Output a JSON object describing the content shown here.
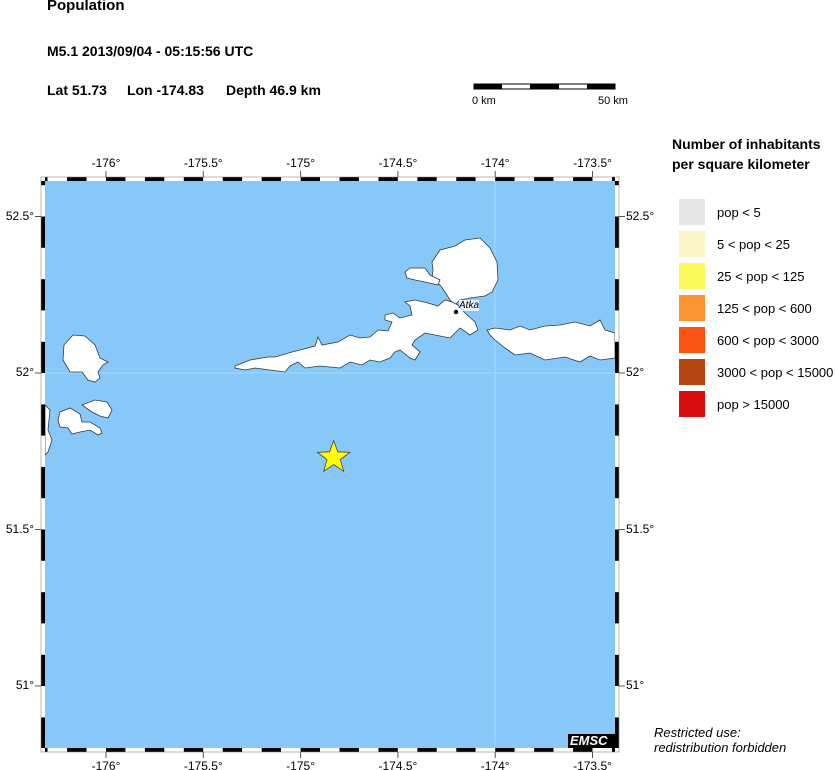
{
  "header": {
    "title": "Population",
    "event": "M5.1  2013/09/04 - 05:15:56 UTC",
    "lat": "Lat 51.73",
    "lon": "Lon -174.83",
    "depth": "Depth  46.9 km"
  },
  "scale_bar": {
    "start_label": "0 km",
    "end_label": "50 km"
  },
  "map": {
    "lon_ticks": [
      "-176°",
      "-175.5°",
      "-175°",
      "-174.5°",
      "-174°",
      "-173.5°"
    ],
    "lat_ticks": [
      "52.5°",
      "52°",
      "51.5°",
      "51°"
    ],
    "lon_range": [
      -176.32,
      -173.38
    ],
    "lat_range": [
      50.8,
      52.61
    ],
    "epicenter": {
      "lat": 51.73,
      "lon": -174.83,
      "color": "#ffff00"
    },
    "place": {
      "name": "Atka"
    },
    "colors": {
      "ocean": "#87c8f8",
      "land": "#ffffff"
    },
    "logo": "EMSC"
  },
  "legend": {
    "title_line1": "Number of inhabitants",
    "title_line2": "per square kilometer",
    "items": [
      {
        "label": "pop < 5",
        "color": "#e6e6e6"
      },
      {
        "label": "5 < pop < 25",
        "color": "#fbf6c8"
      },
      {
        "label": "25 < pop < 125",
        "color": "#fbf85c"
      },
      {
        "label": "125 < pop < 600",
        "color": "#fb9531"
      },
      {
        "label": "600 < pop < 3000",
        "color": "#fb5415"
      },
      {
        "label": "3000 < pop < 15000",
        "color": "#b44512"
      },
      {
        "label": "pop > 15000",
        "color": "#d80e0e"
      }
    ]
  },
  "notice": {
    "line1": "Restricted use:",
    "line2": "redistribution forbidden"
  }
}
